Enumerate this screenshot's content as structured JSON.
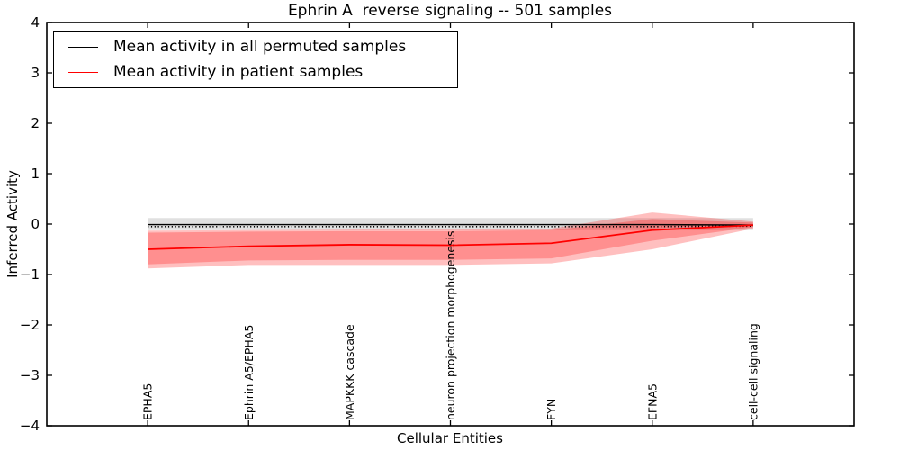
{
  "chart_data": {
    "type": "line",
    "title": "Ephrin A  reverse signaling -- 501 samples",
    "xlabel": "Cellular Entities",
    "ylabel": "Inferred Activity",
    "ylim": [
      -4,
      4
    ],
    "grid": false,
    "legend_position": "upper left",
    "ytick_values": [
      -4,
      -3,
      -2,
      -1,
      0,
      1,
      2,
      3,
      4
    ],
    "ytick_labels": [
      "−4",
      "−3",
      "−2",
      "−1",
      "0",
      "1",
      "2",
      "3",
      "4"
    ],
    "categories": [
      "EPHA5",
      "Ephrin A5/EPHA5",
      "MAPKKK cascade",
      "neuron projection morphogenesis",
      "FYN",
      "EFNA5",
      "cell-cell signaling"
    ],
    "series": [
      {
        "name": "Mean activity in all permuted samples",
        "color": "#000000",
        "style": "solid",
        "width": 1.4,
        "values": [
          -0.01,
          -0.01,
          -0.01,
          -0.01,
          -0.01,
          -0.01,
          -0.02
        ]
      },
      {
        "name": "permuted-samples-dotted-line",
        "color": "#000000",
        "style": "dotted",
        "width": 1.6,
        "values": [
          -0.05,
          -0.05,
          -0.05,
          -0.05,
          -0.05,
          -0.05,
          -0.04
        ]
      },
      {
        "name": "Mean activity in patient samples",
        "color": "#ff0000",
        "style": "solid",
        "width": 1.8,
        "values": [
          -0.5,
          -0.44,
          -0.41,
          -0.42,
          -0.38,
          -0.12,
          -0.02
        ]
      }
    ],
    "bands": [
      {
        "name": "permuted-range",
        "color": "#000000",
        "alpha": 0.12,
        "upper": [
          0.12,
          0.12,
          0.12,
          0.12,
          0.12,
          0.12,
          0.12
        ],
        "lower": [
          -0.12,
          -0.12,
          -0.12,
          -0.12,
          -0.12,
          -0.12,
          -0.12
        ]
      },
      {
        "name": "patient-range-outer",
        "color": "#ff0000",
        "alpha": 0.25,
        "upper": [
          -0.13,
          -0.12,
          -0.11,
          -0.11,
          -0.09,
          0.23,
          0.05
        ],
        "lower": [
          -0.88,
          -0.81,
          -0.81,
          -0.81,
          -0.78,
          -0.5,
          -0.09
        ]
      },
      {
        "name": "patient-range-inner",
        "color": "#ff0000",
        "alpha": 0.25,
        "upper": [
          -0.17,
          -0.15,
          -0.14,
          -0.14,
          -0.12,
          0.1,
          0.03
        ],
        "lower": [
          -0.8,
          -0.72,
          -0.71,
          -0.71,
          -0.68,
          -0.33,
          -0.06
        ]
      }
    ]
  },
  "legend": {
    "entries": [
      {
        "label": "Mean activity in all permuted samples",
        "color": "#000000"
      },
      {
        "label": "Mean activity in patient samples",
        "color": "#ff0000"
      }
    ]
  }
}
